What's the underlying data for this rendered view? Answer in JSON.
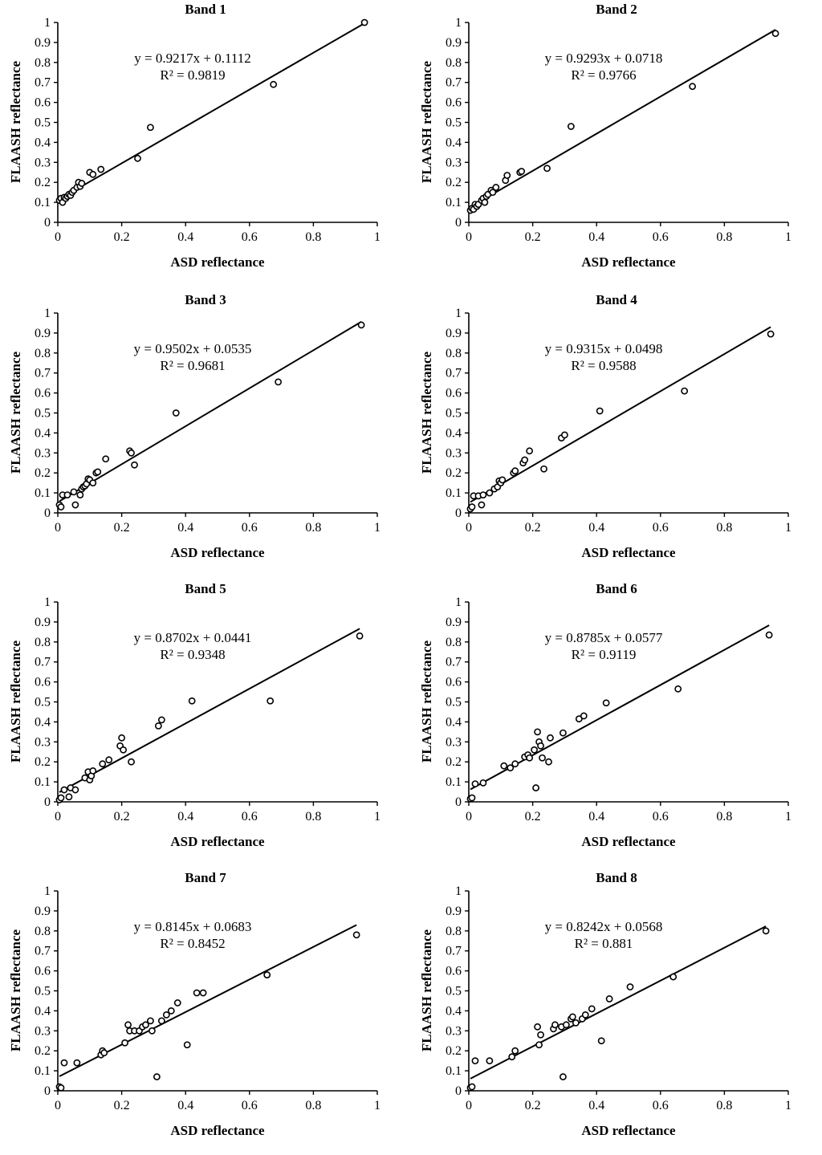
{
  "figure": {
    "xlabel": "ASD reflectance",
    "ylabel": "FLAASH reflectance",
    "x_ticks": [
      "0",
      "0.2",
      "0.4",
      "0.6",
      "0.8",
      "1"
    ],
    "y_ticks": [
      "0",
      "0.1",
      "0.2",
      "0.3",
      "0.4",
      "0.5",
      "0.6",
      "0.7",
      "0.8",
      "0.9",
      "1"
    ]
  },
  "chart_data": [
    {
      "type": "scatter",
      "title": "Band 1",
      "xlabel": "ASD reflectance",
      "ylabel": "FLAASH reflectance",
      "xlim": [
        0,
        1
      ],
      "ylim": [
        0,
        1
      ],
      "slope": 0.9217,
      "intercept": 0.1112,
      "equation": "y = 0.9217x + 0.1112",
      "r2": "R² = 0.9819",
      "points": [
        [
          0.005,
          0.11
        ],
        [
          0.01,
          0.12
        ],
        [
          0.015,
          0.1
        ],
        [
          0.02,
          0.125
        ],
        [
          0.025,
          0.12
        ],
        [
          0.03,
          0.13
        ],
        [
          0.035,
          0.14
        ],
        [
          0.04,
          0.135
        ],
        [
          0.045,
          0.15
        ],
        [
          0.05,
          0.16
        ],
        [
          0.06,
          0.175
        ],
        [
          0.065,
          0.2
        ],
        [
          0.07,
          0.18
        ],
        [
          0.075,
          0.195
        ],
        [
          0.1,
          0.25
        ],
        [
          0.11,
          0.24
        ],
        [
          0.135,
          0.265
        ],
        [
          0.25,
          0.32
        ],
        [
          0.29,
          0.475
        ],
        [
          0.675,
          0.69
        ],
        [
          0.96,
          1.0
        ]
      ]
    },
    {
      "type": "scatter",
      "title": "Band 2",
      "xlabel": "ASD reflectance",
      "ylabel": "FLAASH reflectance",
      "xlim": [
        0,
        1
      ],
      "ylim": [
        0,
        1
      ],
      "slope": 0.9293,
      "intercept": 0.0718,
      "equation": "y = 0.9293x + 0.0718",
      "r2": "R² = 0.9766",
      "points": [
        [
          0.005,
          0.06
        ],
        [
          0.01,
          0.07
        ],
        [
          0.015,
          0.065
        ],
        [
          0.02,
          0.09
        ],
        [
          0.025,
          0.08
        ],
        [
          0.03,
          0.09
        ],
        [
          0.04,
          0.11
        ],
        [
          0.045,
          0.12
        ],
        [
          0.05,
          0.1
        ],
        [
          0.055,
          0.13
        ],
        [
          0.06,
          0.14
        ],
        [
          0.07,
          0.16
        ],
        [
          0.075,
          0.15
        ],
        [
          0.085,
          0.175
        ],
        [
          0.115,
          0.21
        ],
        [
          0.12,
          0.235
        ],
        [
          0.16,
          0.25
        ],
        [
          0.165,
          0.255
        ],
        [
          0.245,
          0.27
        ],
        [
          0.32,
          0.48
        ],
        [
          0.7,
          0.68
        ],
        [
          0.96,
          0.945
        ]
      ]
    },
    {
      "type": "scatter",
      "title": "Band 3",
      "xlabel": "ASD reflectance",
      "ylabel": "FLAASH reflectance",
      "xlim": [
        0,
        1
      ],
      "ylim": [
        0,
        1
      ],
      "slope": 0.9502,
      "intercept": 0.0535,
      "equation": "y = 0.9502x + 0.0535",
      "r2": "R² = 0.9681",
      "points": [
        [
          0.005,
          0.04
        ],
        [
          0.01,
          0.03
        ],
        [
          0.015,
          0.09
        ],
        [
          0.03,
          0.09
        ],
        [
          0.05,
          0.105
        ],
        [
          0.055,
          0.04
        ],
        [
          0.07,
          0.09
        ],
        [
          0.075,
          0.12
        ],
        [
          0.08,
          0.13
        ],
        [
          0.085,
          0.135
        ],
        [
          0.09,
          0.145
        ],
        [
          0.095,
          0.17
        ],
        [
          0.1,
          0.165
        ],
        [
          0.11,
          0.15
        ],
        [
          0.12,
          0.2
        ],
        [
          0.125,
          0.205
        ],
        [
          0.15,
          0.27
        ],
        [
          0.225,
          0.31
        ],
        [
          0.23,
          0.3
        ],
        [
          0.24,
          0.24
        ],
        [
          0.37,
          0.5
        ],
        [
          0.69,
          0.655
        ],
        [
          0.95,
          0.94
        ]
      ]
    },
    {
      "type": "scatter",
      "title": "Band 4",
      "xlabel": "ASD reflectance",
      "ylabel": "FLAASH reflectance",
      "xlim": [
        0,
        1
      ],
      "ylim": [
        0,
        1
      ],
      "slope": 0.9315,
      "intercept": 0.0498,
      "equation": "y = 0.9315x + 0.0498",
      "r2": "R² = 0.9588",
      "points": [
        [
          0.005,
          0.02
        ],
        [
          0.01,
          0.03
        ],
        [
          0.015,
          0.085
        ],
        [
          0.03,
          0.085
        ],
        [
          0.04,
          0.04
        ],
        [
          0.045,
          0.09
        ],
        [
          0.065,
          0.1
        ],
        [
          0.08,
          0.12
        ],
        [
          0.09,
          0.13
        ],
        [
          0.095,
          0.16
        ],
        [
          0.1,
          0.15
        ],
        [
          0.105,
          0.165
        ],
        [
          0.14,
          0.2
        ],
        [
          0.145,
          0.21
        ],
        [
          0.17,
          0.25
        ],
        [
          0.175,
          0.265
        ],
        [
          0.19,
          0.31
        ],
        [
          0.235,
          0.22
        ],
        [
          0.29,
          0.375
        ],
        [
          0.3,
          0.39
        ],
        [
          0.41,
          0.51
        ],
        [
          0.675,
          0.61
        ],
        [
          0.945,
          0.895
        ]
      ]
    },
    {
      "type": "scatter",
      "title": "Band 5",
      "xlabel": "ASD reflectance",
      "ylabel": "FLAASH reflectance",
      "xlim": [
        0,
        1
      ],
      "ylim": [
        0,
        1
      ],
      "slope": 0.8702,
      "intercept": 0.0441,
      "equation": "y = 0.8702x + 0.0441",
      "r2": "R² = 0.9348",
      "points": [
        [
          0.005,
          0.01
        ],
        [
          0.01,
          0.02
        ],
        [
          0.02,
          0.06
        ],
        [
          0.035,
          0.025
        ],
        [
          0.04,
          0.07
        ],
        [
          0.055,
          0.06
        ],
        [
          0.085,
          0.12
        ],
        [
          0.095,
          0.15
        ],
        [
          0.1,
          0.11
        ],
        [
          0.105,
          0.13
        ],
        [
          0.11,
          0.155
        ],
        [
          0.14,
          0.19
        ],
        [
          0.16,
          0.21
        ],
        [
          0.195,
          0.28
        ],
        [
          0.2,
          0.32
        ],
        [
          0.205,
          0.26
        ],
        [
          0.23,
          0.2
        ],
        [
          0.315,
          0.38
        ],
        [
          0.325,
          0.41
        ],
        [
          0.42,
          0.505
        ],
        [
          0.665,
          0.505
        ],
        [
          0.945,
          0.83
        ]
      ]
    },
    {
      "type": "scatter",
      "title": "Band 6",
      "xlabel": "ASD reflectance",
      "ylabel": "FLAASH reflectance",
      "xlim": [
        0,
        1
      ],
      "ylim": [
        0,
        1
      ],
      "slope": 0.8785,
      "intercept": 0.0577,
      "equation": "y = 0.8785x + 0.0577",
      "r2": "R² = 0.9119",
      "points": [
        [
          0.005,
          0.015
        ],
        [
          0.01,
          0.02
        ],
        [
          0.02,
          0.09
        ],
        [
          0.045,
          0.095
        ],
        [
          0.11,
          0.18
        ],
        [
          0.13,
          0.17
        ],
        [
          0.145,
          0.19
        ],
        [
          0.175,
          0.225
        ],
        [
          0.185,
          0.235
        ],
        [
          0.19,
          0.22
        ],
        [
          0.205,
          0.26
        ],
        [
          0.21,
          0.07
        ],
        [
          0.215,
          0.35
        ],
        [
          0.22,
          0.3
        ],
        [
          0.225,
          0.28
        ],
        [
          0.23,
          0.22
        ],
        [
          0.25,
          0.2
        ],
        [
          0.255,
          0.32
        ],
        [
          0.295,
          0.345
        ],
        [
          0.345,
          0.415
        ],
        [
          0.36,
          0.43
        ],
        [
          0.43,
          0.495
        ],
        [
          0.655,
          0.565
        ],
        [
          0.94,
          0.835
        ]
      ]
    },
    {
      "type": "scatter",
      "title": "Band 7",
      "xlabel": "ASD reflectance",
      "ylabel": "FLAASH reflectance",
      "xlim": [
        0,
        1
      ],
      "ylim": [
        0,
        1
      ],
      "slope": 0.8145,
      "intercept": 0.0683,
      "equation": "y = 0.8145x + 0.0683",
      "r2": "R² = 0.8452",
      "points": [
        [
          0.005,
          0.02
        ],
        [
          0.01,
          0.015
        ],
        [
          0.02,
          0.14
        ],
        [
          0.06,
          0.14
        ],
        [
          0.135,
          0.18
        ],
        [
          0.14,
          0.2
        ],
        [
          0.145,
          0.19
        ],
        [
          0.21,
          0.24
        ],
        [
          0.22,
          0.33
        ],
        [
          0.225,
          0.3
        ],
        [
          0.24,
          0.3
        ],
        [
          0.255,
          0.3
        ],
        [
          0.265,
          0.32
        ],
        [
          0.275,
          0.33
        ],
        [
          0.29,
          0.35
        ],
        [
          0.295,
          0.3
        ],
        [
          0.31,
          0.07
        ],
        [
          0.325,
          0.35
        ],
        [
          0.34,
          0.38
        ],
        [
          0.355,
          0.4
        ],
        [
          0.375,
          0.44
        ],
        [
          0.405,
          0.23
        ],
        [
          0.435,
          0.49
        ],
        [
          0.455,
          0.49
        ],
        [
          0.655,
          0.58
        ],
        [
          0.935,
          0.78
        ]
      ]
    },
    {
      "type": "scatter",
      "title": "Band 8",
      "xlabel": "ASD reflectance",
      "ylabel": "FLAASH reflectance",
      "xlim": [
        0,
        1
      ],
      "ylim": [
        0,
        1
      ],
      "slope": 0.8242,
      "intercept": 0.0568,
      "equation": "y = 0.8242x + 0.0568",
      "r2": "R² = 0.881",
      "points": [
        [
          0.005,
          0.015
        ],
        [
          0.01,
          0.02
        ],
        [
          0.02,
          0.15
        ],
        [
          0.065,
          0.15
        ],
        [
          0.135,
          0.17
        ],
        [
          0.145,
          0.2
        ],
        [
          0.215,
          0.32
        ],
        [
          0.22,
          0.23
        ],
        [
          0.225,
          0.28
        ],
        [
          0.265,
          0.31
        ],
        [
          0.27,
          0.33
        ],
        [
          0.29,
          0.32
        ],
        [
          0.295,
          0.07
        ],
        [
          0.305,
          0.33
        ],
        [
          0.32,
          0.36
        ],
        [
          0.325,
          0.37
        ],
        [
          0.335,
          0.34
        ],
        [
          0.355,
          0.36
        ],
        [
          0.365,
          0.38
        ],
        [
          0.385,
          0.41
        ],
        [
          0.415,
          0.25
        ],
        [
          0.44,
          0.46
        ],
        [
          0.505,
          0.52
        ],
        [
          0.64,
          0.57
        ],
        [
          0.93,
          0.8
        ]
      ]
    }
  ]
}
